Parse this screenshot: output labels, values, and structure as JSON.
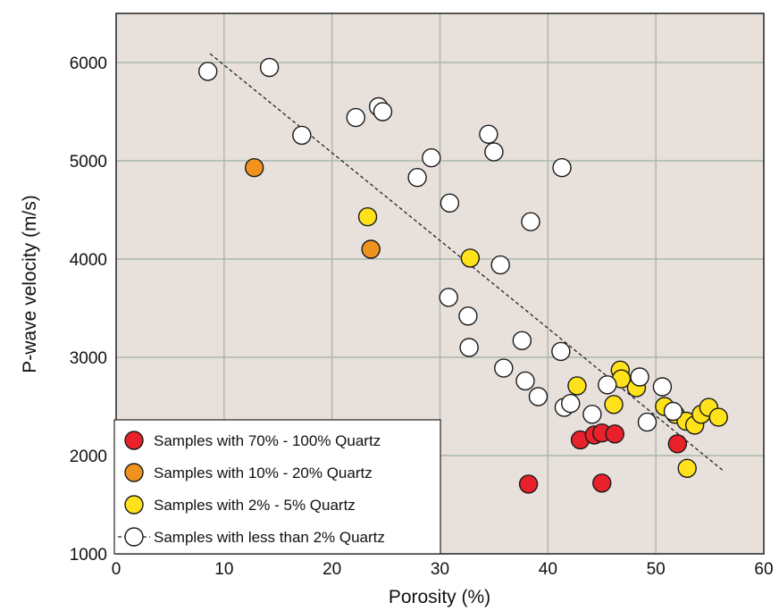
{
  "chart_data": {
    "type": "scatter",
    "title": "",
    "xlabel": "Porosity (%)",
    "ylabel": "P-wave velocity (m/s)",
    "xlim": [
      0,
      60
    ],
    "ylim": [
      1000,
      6500
    ],
    "xticks": [
      "0",
      "10",
      "20",
      "30",
      "40",
      "50",
      "60"
    ],
    "yticks": [
      "1000",
      "2000",
      "3000",
      "4000",
      "5000",
      "6000"
    ],
    "grid": true,
    "legend_position": "bottom-left",
    "plot_background": "#e8e0db",
    "grid_color": "#a9b7aa",
    "trendline": {
      "style": "dashed",
      "x": [
        8.7,
        56.2
      ],
      "y": [
        6090,
        1850
      ]
    },
    "series": [
      {
        "name": "Samples with 70% - 100% Quartz",
        "color": "#e8212b",
        "points": [
          [
            38.2,
            1710
          ],
          [
            43,
            2160
          ],
          [
            44.3,
            2210
          ],
          [
            45,
            2230
          ],
          [
            45,
            1720
          ],
          [
            46.2,
            2220
          ],
          [
            52,
            2120
          ]
        ]
      },
      {
        "name": "Samples with 10% - 20% Quartz",
        "color": "#f0921e",
        "points": [
          [
            12.8,
            4930
          ],
          [
            23.6,
            4100
          ]
        ]
      },
      {
        "name": "Samples with 2% - 5% Quartz",
        "color": "#ffe21a",
        "points": [
          [
            23.3,
            4430
          ],
          [
            32.8,
            4010
          ],
          [
            42.7,
            2710
          ],
          [
            46.1,
            2520
          ],
          [
            46.7,
            2870
          ],
          [
            46.8,
            2780
          ],
          [
            48.2,
            2690
          ],
          [
            50.8,
            2500
          ],
          [
            51.8,
            2420
          ],
          [
            52.8,
            2350
          ],
          [
            52.9,
            1870
          ],
          [
            53.6,
            2310
          ],
          [
            54.2,
            2420
          ],
          [
            54.9,
            2490
          ],
          [
            55.8,
            2390
          ]
        ]
      },
      {
        "name": "Samples with less than 2% Quartz",
        "color": "#ffffff",
        "points": [
          [
            8.5,
            5910
          ],
          [
            14.2,
            5950
          ],
          [
            17.2,
            5260
          ],
          [
            22.2,
            5440
          ],
          [
            24.3,
            5550
          ],
          [
            24.7,
            5500
          ],
          [
            27.9,
            4830
          ],
          [
            29.2,
            5030
          ],
          [
            30.9,
            4570
          ],
          [
            30.8,
            3610
          ],
          [
            32.6,
            3420
          ],
          [
            32.7,
            3100
          ],
          [
            34.5,
            5270
          ],
          [
            35,
            5090
          ],
          [
            35.6,
            3940
          ],
          [
            35.9,
            2890
          ],
          [
            37.6,
            3170
          ],
          [
            37.9,
            2760
          ],
          [
            38.4,
            4380
          ],
          [
            39.1,
            2600
          ],
          [
            41.3,
            4930
          ],
          [
            41.2,
            3060
          ],
          [
            41.5,
            2490
          ],
          [
            42.1,
            2530
          ],
          [
            44.1,
            2420
          ],
          [
            45.5,
            2720
          ],
          [
            48.5,
            2800
          ],
          [
            49.2,
            2340
          ],
          [
            50.6,
            2700
          ],
          [
            51.6,
            2450
          ]
        ]
      }
    ]
  }
}
